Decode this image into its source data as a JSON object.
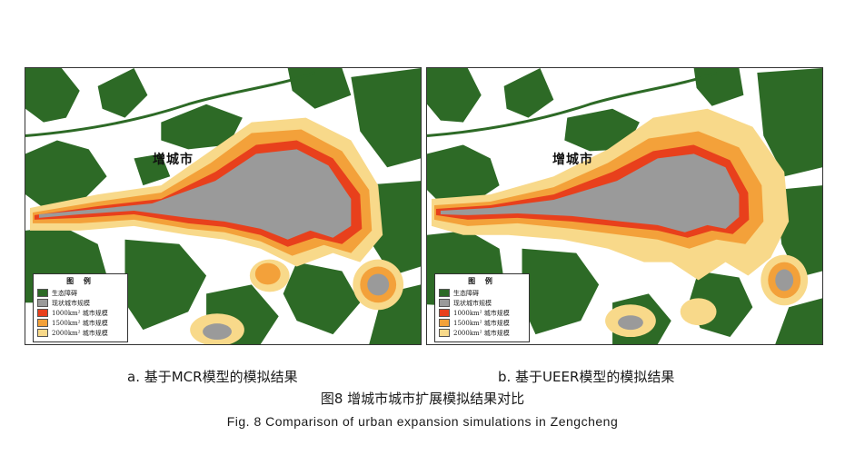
{
  "colors": {
    "ecological": "#2d6a26",
    "current": "#9a9a9a",
    "scale_1000": "#e8401c",
    "scale_1500": "#f3a13a",
    "scale_2000": "#f8d98a",
    "background": "#ffffff"
  },
  "maps": [
    {
      "id": "a",
      "city_label": "增城市",
      "legend": {
        "title": "图 例",
        "items": [
          {
            "key": "ecological",
            "label": "生态障碍"
          },
          {
            "key": "current",
            "label": "现状城市规模"
          },
          {
            "key": "scale_1000",
            "label": "1000km² 城市规模"
          },
          {
            "key": "scale_1500",
            "label": "1500km² 城市规模"
          },
          {
            "key": "scale_2000",
            "label": "2000km² 城市规模"
          }
        ]
      },
      "caption": "a. 基于MCR模型的模拟结果"
    },
    {
      "id": "b",
      "city_label": "增城市",
      "legend": {
        "title": "图 例",
        "items": [
          {
            "key": "ecological",
            "label": "生态障碍"
          },
          {
            "key": "current",
            "label": "现状城市规模"
          },
          {
            "key": "scale_1000",
            "label": "1000km² 城市规模"
          },
          {
            "key": "scale_1500",
            "label": "1500km² 城市规模"
          },
          {
            "key": "scale_2000",
            "label": "2000km² 城市规模"
          }
        ]
      },
      "caption": "b. 基于UEER模型的模拟结果"
    }
  ],
  "figure_caption_cn": "图8  增城市城市扩展模拟结果对比",
  "figure_caption_en": "Fig. 8  Comparison of urban expansion simulations in Zengcheng"
}
